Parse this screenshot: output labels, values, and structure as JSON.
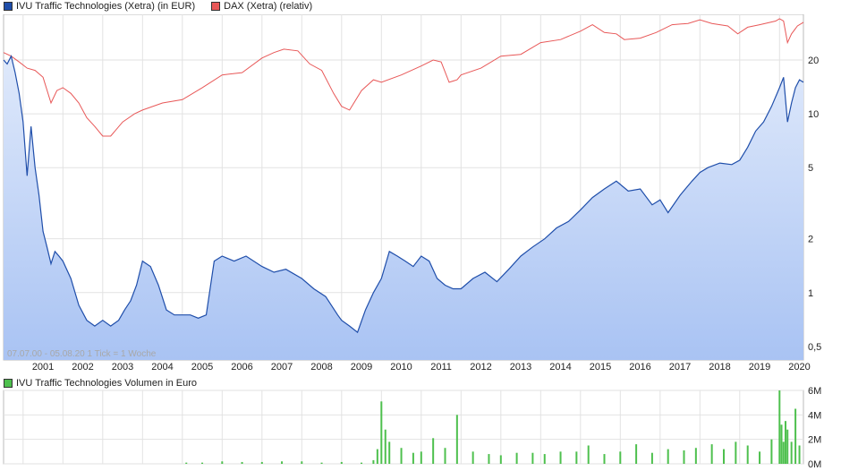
{
  "legend": {
    "ivu_label": "IVU Traffic Technologies (Xetra) (in EUR)",
    "ivu_color": "#1f4eaa",
    "dax_label": "DAX (Xetra) (relativ)",
    "dax_color": "#e85858"
  },
  "period_note": "07.07.00 - 05.08.20   1 Tick = 1 Woche",
  "volume_legend": {
    "label": "IVU Traffic Technologies Volumen in Euro",
    "color": "#4ec04e"
  },
  "chart_data": [
    {
      "type": "line",
      "y_scale": "log",
      "ylim": [
        0.42,
        36
      ],
      "xlim": [
        2000.51,
        2020.6
      ],
      "x_tick_labels": [
        "2001",
        "2002",
        "2003",
        "2004",
        "2005",
        "2006",
        "2007",
        "2008",
        "2009",
        "2010",
        "2011",
        "2012",
        "2013",
        "2014",
        "2015",
        "2016",
        "2017",
        "2018",
        "2019",
        "2020"
      ],
      "y_ticks": [
        0.5,
        1,
        2,
        5,
        10,
        20
      ],
      "y_tick_labels": [
        "0,5",
        "1",
        "2",
        "5",
        "10",
        "20"
      ],
      "grid": true,
      "legend_position": "top-left",
      "series": [
        {
          "name": "IVU Traffic Technologies (Xetra) (in EUR)",
          "color": "#1f4eaa",
          "fill": true,
          "x": [
            2000.51,
            2000.6,
            2000.7,
            2000.8,
            2000.9,
            2001.0,
            2001.1,
            2001.2,
            2001.3,
            2001.4,
            2001.5,
            2001.6,
            2001.7,
            2001.8,
            2001.9,
            2002.0,
            2002.2,
            2002.4,
            2002.6,
            2002.8,
            2003.0,
            2003.2,
            2003.4,
            2003.55,
            2003.7,
            2003.85,
            2004.0,
            2004.2,
            2004.4,
            2004.6,
            2004.8,
            2005.0,
            2005.2,
            2005.4,
            2005.6,
            2005.8,
            2006.0,
            2006.3,
            2006.6,
            2007.0,
            2007.3,
            2007.6,
            2008.0,
            2008.3,
            2008.6,
            2008.9,
            2009.0,
            2009.2,
            2009.4,
            2009.6,
            2009.8,
            2010.0,
            2010.2,
            2010.4,
            2010.6,
            2010.8,
            2011.0,
            2011.2,
            2011.4,
            2011.6,
            2011.8,
            2012.0,
            2012.3,
            2012.6,
            2012.9,
            2013.2,
            2013.5,
            2013.8,
            2014.1,
            2014.4,
            2014.7,
            2015.0,
            2015.3,
            2015.6,
            2015.9,
            2016.2,
            2016.5,
            2016.8,
            2017.0,
            2017.2,
            2017.5,
            2017.8,
            2018.0,
            2018.2,
            2018.5,
            2018.8,
            2019.0,
            2019.2,
            2019.4,
            2019.6,
            2019.8,
            2020.0,
            2020.1,
            2020.2,
            2020.3,
            2020.4,
            2020.5,
            2020.6
          ],
          "y": [
            20.0,
            19.0,
            21.0,
            17.0,
            13.0,
            9.0,
            4.5,
            8.5,
            5.0,
            3.5,
            2.2,
            1.8,
            1.45,
            1.7,
            1.6,
            1.5,
            1.2,
            0.85,
            0.7,
            0.65,
            0.7,
            0.65,
            0.7,
            0.8,
            0.9,
            1.1,
            1.5,
            1.4,
            1.1,
            0.8,
            0.75,
            0.75,
            0.75,
            0.72,
            0.75,
            1.5,
            1.6,
            1.5,
            1.6,
            1.4,
            1.3,
            1.35,
            1.2,
            1.05,
            0.95,
            0.75,
            0.7,
            0.65,
            0.6,
            0.8,
            1.0,
            1.2,
            1.7,
            1.6,
            1.5,
            1.4,
            1.6,
            1.5,
            1.2,
            1.1,
            1.05,
            1.05,
            1.2,
            1.3,
            1.15,
            1.35,
            1.6,
            1.8,
            2.0,
            2.3,
            2.5,
            2.9,
            3.4,
            3.8,
            4.2,
            3.7,
            3.8,
            3.1,
            3.3,
            2.8,
            3.5,
            4.2,
            4.7,
            5.0,
            5.3,
            5.2,
            5.5,
            6.5,
            8.0,
            9.0,
            11.0,
            14.0,
            16.0,
            9.0,
            11.5,
            14.0,
            15.5,
            15.0
          ]
        },
        {
          "name": "DAX (Xetra) (relativ)",
          "color": "#e85858",
          "fill": false,
          "x": [
            2000.51,
            2000.7,
            2000.9,
            2001.1,
            2001.3,
            2001.5,
            2001.7,
            2001.85,
            2002.0,
            2002.2,
            2002.4,
            2002.6,
            2002.8,
            2003.0,
            2003.2,
            2003.5,
            2003.8,
            2004.0,
            2004.5,
            2005.0,
            2005.5,
            2006.0,
            2006.5,
            2007.0,
            2007.3,
            2007.55,
            2007.9,
            2008.2,
            2008.5,
            2008.8,
            2009.0,
            2009.2,
            2009.5,
            2009.8,
            2010.0,
            2010.5,
            2011.0,
            2011.3,
            2011.5,
            2011.7,
            2011.9,
            2012.0,
            2012.5,
            2013.0,
            2013.5,
            2014.0,
            2014.5,
            2015.0,
            2015.3,
            2015.6,
            2015.9,
            2016.1,
            2016.5,
            2016.9,
            2017.3,
            2017.7,
            2018.0,
            2018.3,
            2018.7,
            2018.95,
            2019.2,
            2019.5,
            2019.9,
            2020.0,
            2020.1,
            2020.2,
            2020.3,
            2020.45,
            2020.6
          ],
          "y": [
            22.0,
            21.0,
            19.5,
            18.0,
            17.5,
            16.0,
            11.5,
            13.5,
            14.0,
            13.0,
            11.5,
            9.5,
            8.5,
            7.5,
            7.5,
            9.0,
            10.0,
            10.5,
            11.5,
            12.0,
            14.0,
            16.5,
            17.0,
            20.5,
            22.0,
            23.0,
            22.5,
            19.0,
            17.5,
            13.0,
            11.0,
            10.5,
            13.5,
            15.5,
            15.0,
            16.5,
            18.5,
            20.0,
            19.5,
            15.0,
            15.5,
            16.5,
            18.0,
            21.0,
            21.5,
            25.0,
            26.0,
            29.0,
            31.5,
            28.5,
            28.0,
            26.0,
            26.5,
            28.5,
            31.5,
            32.0,
            33.5,
            32.0,
            31.0,
            28.0,
            30.5,
            31.5,
            33.0,
            34.0,
            33.0,
            25.0,
            28.0,
            31.0,
            32.5
          ]
        }
      ]
    },
    {
      "type": "bar",
      "title": "IVU Traffic Technologies Volumen in Euro",
      "ylim": [
        0,
        6
      ],
      "y_ticks": [
        0,
        2,
        4,
        6
      ],
      "y_tick_labels": [
        "0M",
        "2M",
        "4M",
        "6M"
      ],
      "xlim": [
        2000.51,
        2020.6
      ],
      "grid": true,
      "series": [
        {
          "name": "IVU Traffic Technologies Volumen in Euro",
          "color": "#4ec04e",
          "x": [
            2005.1,
            2005.5,
            2006.0,
            2006.5,
            2007.0,
            2007.5,
            2008.0,
            2008.5,
            2009.0,
            2009.5,
            2009.8,
            2009.9,
            2010.0,
            2010.1,
            2010.2,
            2010.5,
            2010.8,
            2011.0,
            2011.3,
            2011.6,
            2011.9,
            2012.3,
            2012.7,
            2013.0,
            2013.4,
            2013.8,
            2014.1,
            2014.5,
            2014.9,
            2015.2,
            2015.6,
            2016.0,
            2016.4,
            2016.8,
            2017.2,
            2017.6,
            2017.9,
            2018.3,
            2018.6,
            2018.9,
            2019.2,
            2019.5,
            2019.8,
            2020.0,
            2020.05,
            2020.1,
            2020.15,
            2020.2,
            2020.3,
            2020.4,
            2020.5
          ],
          "y": [
            0.1,
            0.1,
            0.2,
            0.15,
            0.15,
            0.2,
            0.2,
            0.1,
            0.15,
            0.1,
            0.3,
            1.2,
            5.1,
            2.8,
            1.8,
            1.3,
            0.9,
            1.0,
            2.1,
            1.3,
            4.0,
            1.0,
            0.8,
            0.7,
            0.9,
            0.9,
            0.8,
            1.0,
            1.0,
            1.5,
            0.8,
            1.0,
            1.6,
            0.9,
            1.2,
            1.1,
            1.3,
            1.6,
            1.2,
            1.8,
            1.5,
            1.0,
            2.0,
            6.0,
            3.2,
            1.8,
            3.5,
            2.8,
            1.8,
            4.5,
            1.5
          ]
        }
      ]
    }
  ]
}
